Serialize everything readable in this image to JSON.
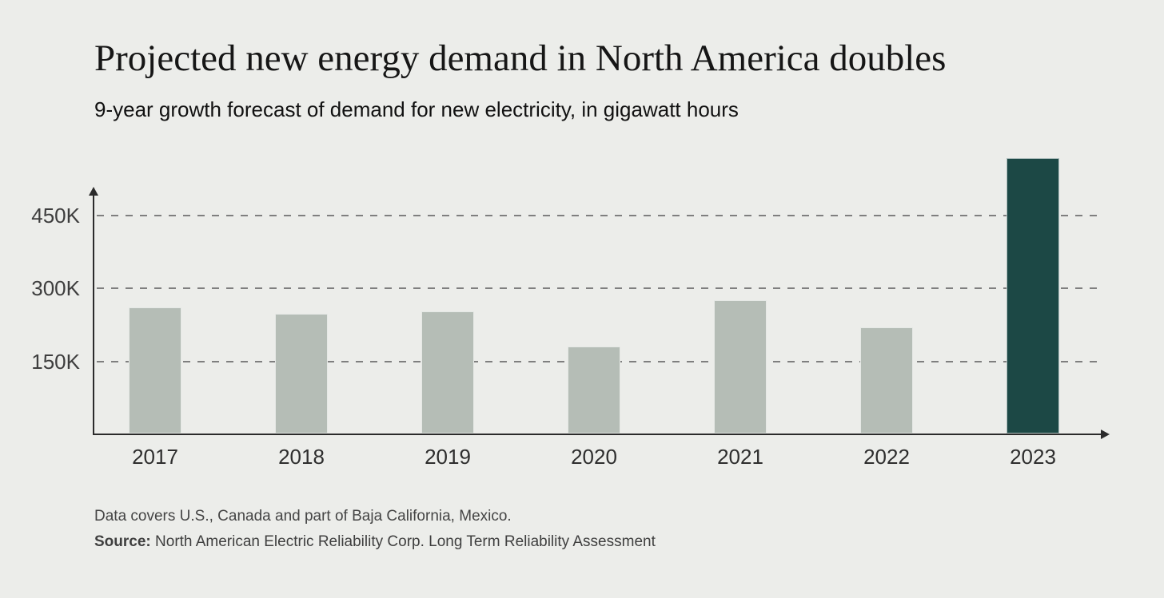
{
  "header": {
    "title": "Projected new energy demand in North America doubles",
    "subtitle": "9-year growth forecast of demand for new electricity, in gigawatt hours"
  },
  "chart_data": {
    "type": "bar",
    "title": "Projected new energy demand in North America doubles",
    "subtitle": "9-year growth forecast of demand for new electricity, in gigawatt hours",
    "categories": [
      "2017",
      "2018",
      "2019",
      "2020",
      "2021",
      "2022",
      "2023"
    ],
    "values": [
      260000,
      246000,
      252000,
      179000,
      274000,
      218000,
      567000
    ],
    "unit": "gigawatt hours",
    "xlabel": "",
    "ylabel": "",
    "y_ticks": [
      {
        "value": 150000,
        "label": "150K"
      },
      {
        "value": 300000,
        "label": "300K"
      },
      {
        "value": 450000,
        "label": "450K"
      }
    ],
    "ylim": [
      0,
      600000
    ],
    "grid": "horizontal-dashed",
    "legend": "none",
    "highlight_index": 6,
    "bar_color": "#b5bdb6",
    "highlight_color": "#1c4845",
    "axis_color": "#2b2b2b",
    "grid_color": "#7f7f7f",
    "background_color": "#ecedea"
  },
  "footer": {
    "note": "Data covers U.S., Canada and part of Baja California, Mexico.",
    "source_label": "Source:",
    "source_text": " North American Electric Reliability Corp. Long Term Reliability Assessment"
  }
}
